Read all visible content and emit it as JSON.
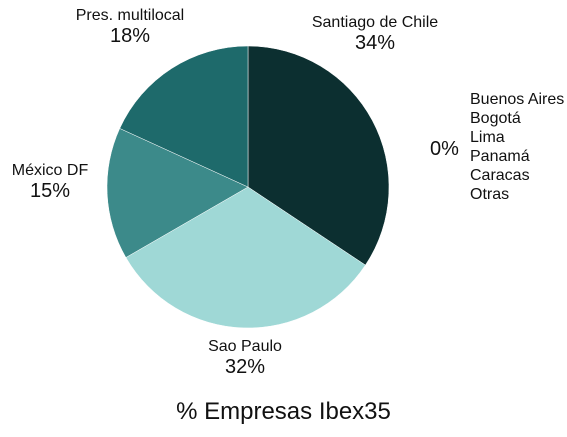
{
  "chart_data": {
    "type": "pie",
    "title": "% Empresas Ibex35",
    "slices": [
      {
        "label": "Santiago de Chile",
        "value": 34,
        "display": "34%",
        "color": "#0c2f30"
      },
      {
        "label": "Sao Paulo",
        "value": 32,
        "display": "32%",
        "color": "#9fd8d6"
      },
      {
        "label": "México DF",
        "value": 15,
        "display": "15%",
        "color": "#3c8a8a"
      },
      {
        "label": "Pres. multilocal",
        "value": 18,
        "display": "18%",
        "color": "#1e6a6b"
      }
    ],
    "zero_group": {
      "display": "0%",
      "labels": [
        "Buenos Aires",
        "Bogotá",
        "Lima",
        "Panamá",
        "Caracas",
        "Otras"
      ]
    }
  }
}
